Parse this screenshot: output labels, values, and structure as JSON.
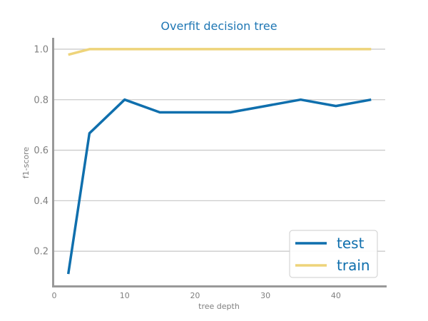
{
  "chart_data": {
    "type": "line",
    "title": "Overfit decision tree",
    "xlabel": "tree depth",
    "ylabel": "f1-score",
    "xlim": [
      0,
      47
    ],
    "ylim": [
      0.065,
      1.045
    ],
    "xticks": [
      0,
      10,
      20,
      30,
      40
    ],
    "yticks": [
      0.2,
      0.4,
      0.6,
      0.8,
      1.0
    ],
    "grid": "horizontal",
    "legend": "bottom-right",
    "x": [
      2,
      5,
      10,
      15,
      20,
      25,
      30,
      35,
      40,
      45
    ],
    "series": [
      {
        "name": "test",
        "color": "#0f6fad",
        "values": [
          0.11,
          0.667,
          0.8,
          0.75,
          0.75,
          0.75,
          0.775,
          0.8,
          0.775,
          0.8
        ]
      },
      {
        "name": "train",
        "color": "#eed47a",
        "values": [
          0.978,
          1.0,
          1.0,
          1.0,
          1.0,
          1.0,
          1.0,
          1.0,
          1.0,
          1.0
        ]
      }
    ]
  },
  "colors": {
    "title": "#1f77b4",
    "axis": "#999999",
    "grid": "#cccccc",
    "legend_text": "#0f6fad"
  }
}
